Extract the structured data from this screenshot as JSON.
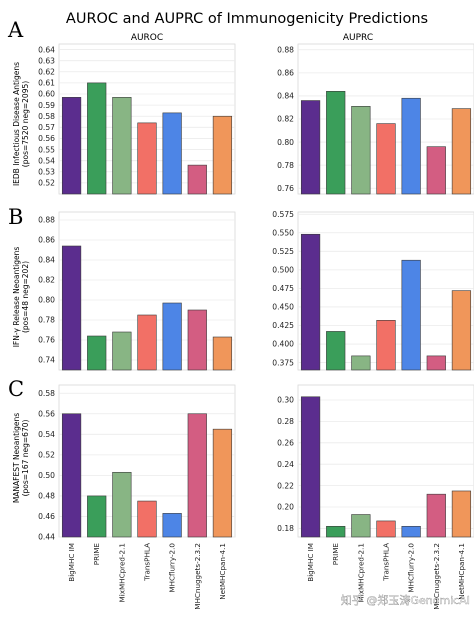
{
  "title": "AUROC and AUPRC of Immunogenicity Predictions",
  "watermark": "知乎 @郑玉涛GenomicAI",
  "colors": [
    "#5b2d8e",
    "#3a9e5a",
    "#88b584",
    "#f27066",
    "#4d85e6",
    "#d35d82",
    "#f0965a"
  ],
  "chart_data": [
    {
      "type": "bar",
      "panel": "A",
      "column_title": "AUROC",
      "ylabel": [
        "IEDB Infectious Disease Antigens",
        "(pos=7520 neg=2095)"
      ],
      "categories": [
        "BigMHC IM",
        "PRIME",
        "MixMHCpred-2.1",
        "TransPHLA",
        "MHCflurry-2.0",
        "MHCnuggets-2.3.2",
        "NetMHCpan-4.1"
      ],
      "values": [
        0.597,
        0.61,
        0.597,
        0.574,
        0.583,
        0.536,
        0.58
      ],
      "ylim": [
        0.51,
        0.645
      ],
      "yticks": [
        "0.52",
        "0.53",
        "0.54",
        "0.55",
        "0.56",
        "0.57",
        "0.58",
        "0.59",
        "0.60",
        "0.61",
        "0.62",
        "0.63",
        "0.64"
      ],
      "grid": true
    },
    {
      "type": "bar",
      "panel": "A",
      "column_title": "AUPRC",
      "categories": [
        "BigMHC IM",
        "PRIME",
        "MixMHCpred-2.1",
        "TransPHLA",
        "MHCflurry-2.0",
        "MHCnuggets-2.3.2",
        "NetMHCpan-4.1"
      ],
      "values": [
        0.836,
        0.844,
        0.831,
        0.816,
        0.838,
        0.796,
        0.829
      ],
      "ylim": [
        0.755,
        0.885
      ],
      "yticks": [
        "0.76",
        "0.78",
        "0.80",
        "0.82",
        "0.84",
        "0.86",
        "0.88"
      ],
      "grid": true
    },
    {
      "type": "bar",
      "panel": "B",
      "ylabel": [
        "IFN-γ Release Neoantigens",
        "(pos=48 neg=202)"
      ],
      "categories": [
        "BigMHC IM",
        "PRIME",
        "MixMHCpred-2.1",
        "TransPHLA",
        "MHCflurry-2.0",
        "MHCnuggets-2.3.2",
        "NetMHCpan-4.1"
      ],
      "values": [
        0.854,
        0.764,
        0.768,
        0.785,
        0.797,
        0.79,
        0.763
      ],
      "ylim": [
        0.73,
        0.888
      ],
      "yticks": [
        "0.74",
        "0.76",
        "0.78",
        "0.80",
        "0.82",
        "0.84",
        "0.86",
        "0.88"
      ],
      "grid": true
    },
    {
      "type": "bar",
      "panel": "B",
      "categories": [
        "BigMHC IM",
        "PRIME",
        "MixMHCpred-2.1",
        "TransPHLA",
        "MHCflurry-2.0",
        "MHCnuggets-2.3.2",
        "NetMHCpan-4.1"
      ],
      "values": [
        0.548,
        0.417,
        0.384,
        0.432,
        0.513,
        0.384,
        0.472
      ],
      "ylim": [
        0.365,
        0.578
      ],
      "yticks": [
        "0.375",
        "0.400",
        "0.425",
        "0.450",
        "0.475",
        "0.500",
        "0.525",
        "0.550",
        "0.575"
      ],
      "grid": true
    },
    {
      "type": "bar",
      "panel": "C",
      "ylabel": [
        "MANAFEST Neoantigens",
        "(pos=167 neg=670)"
      ],
      "categories": [
        "BigMHC IM",
        "PRIME",
        "MixMHCpred-2.1",
        "TransPHLA",
        "MHCflurry-2.0",
        "MHCnuggets-2.3.2",
        "NetMHCpan-4.1"
      ],
      "values": [
        0.56,
        0.48,
        0.503,
        0.475,
        0.463,
        0.56,
        0.545
      ],
      "ylim": [
        0.44,
        0.588
      ],
      "yticks": [
        "0.44",
        "0.46",
        "0.48",
        "0.50",
        "0.52",
        "0.54",
        "0.56",
        "0.58"
      ],
      "grid": true
    },
    {
      "type": "bar",
      "panel": "C",
      "categories": [
        "BigMHC IM",
        "PRIME",
        "MixMHCpred-2.1",
        "TransPHLA",
        "MHCflurry-2.0",
        "MHCnuggets-2.3.2",
        "NetMHCpan-4.1"
      ],
      "values": [
        0.303,
        0.182,
        0.193,
        0.187,
        0.182,
        0.212,
        0.215
      ],
      "ylim": [
        0.172,
        0.314
      ],
      "yticks": [
        "0.18",
        "0.20",
        "0.22",
        "0.24",
        "0.26",
        "0.28",
        "0.30"
      ],
      "grid": true
    }
  ]
}
